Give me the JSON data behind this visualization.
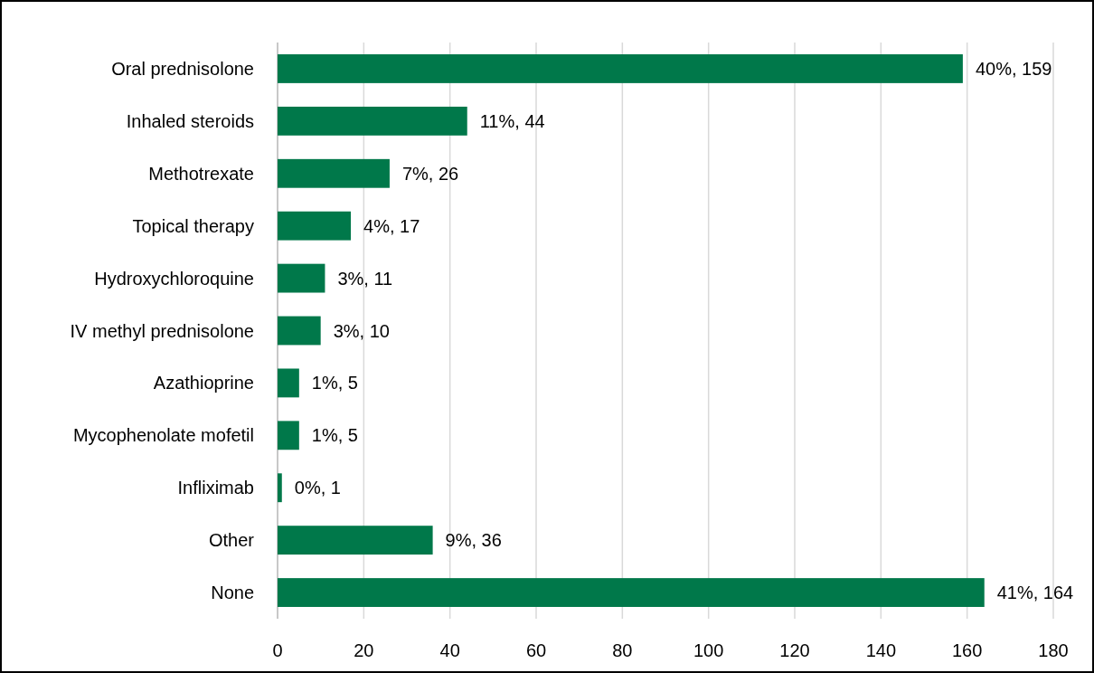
{
  "chart_data": {
    "type": "bar",
    "orientation": "horizontal",
    "categories": [
      "Oral prednisolone",
      "Inhaled steroids",
      "Methotrexate",
      "Topical therapy",
      "Hydroxychloroquine",
      "IV methyl prednisolone",
      "Azathioprine",
      "Mycophenolate mofetil",
      "Infliximab",
      "Other",
      "None"
    ],
    "values": [
      159,
      44,
      26,
      17,
      11,
      10,
      5,
      5,
      1,
      36,
      164
    ],
    "value_labels": [
      "40%, 159",
      "11%, 44",
      "7%, 26",
      "4%, 17",
      "3%, 11",
      "3%, 10",
      "1%, 5",
      "1%, 5",
      "0%, 1",
      "9%, 36",
      "41%, 164"
    ],
    "color": "#00784a",
    "xlim": [
      0,
      180
    ],
    "xticks": [
      0,
      20,
      40,
      60,
      80,
      100,
      120,
      140,
      160,
      180
    ],
    "grid": "x"
  }
}
